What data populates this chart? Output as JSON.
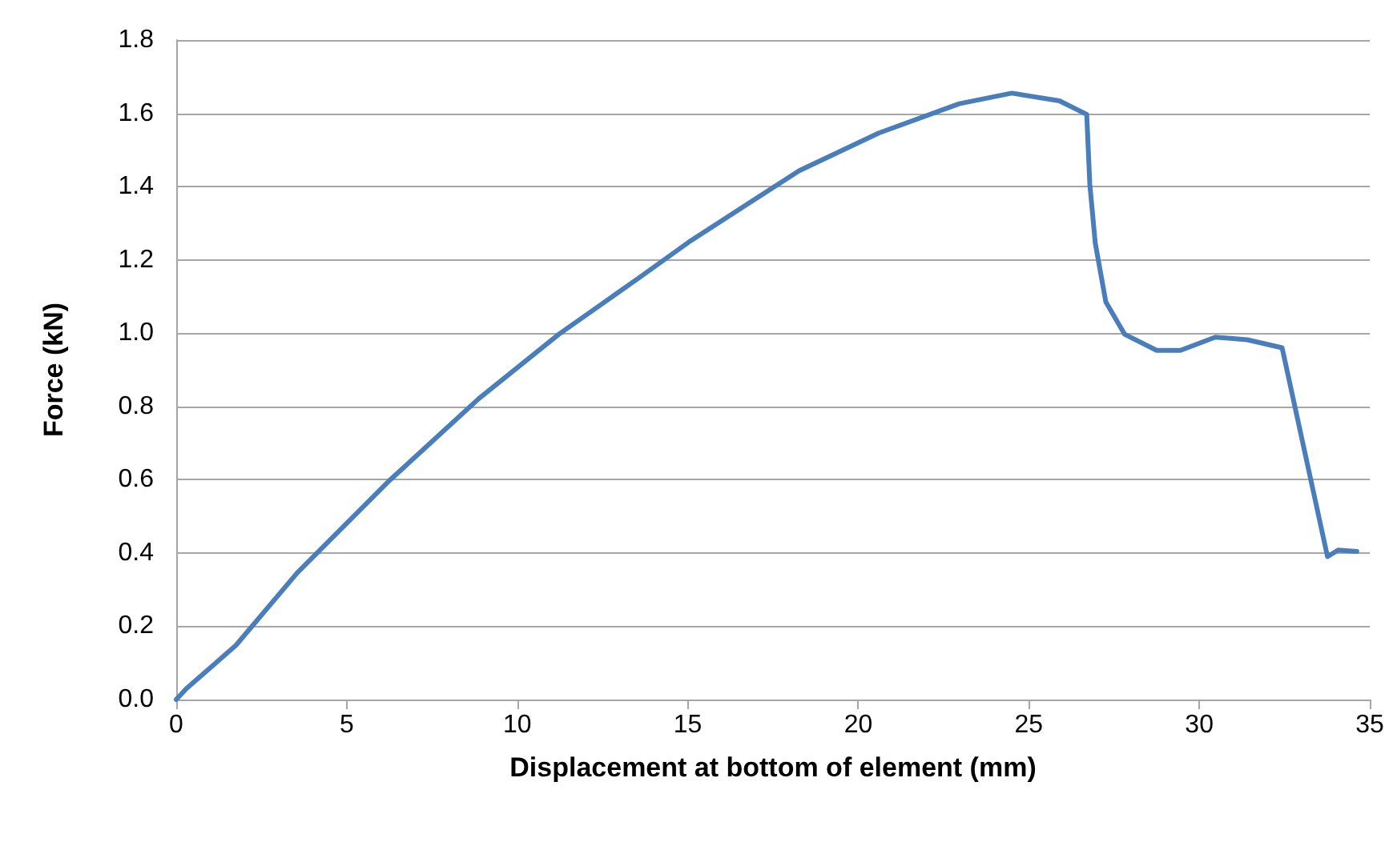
{
  "chart_data": {
    "type": "line",
    "xlabel": "Displacement at bottom of element (mm)",
    "ylabel": "Force (kN)",
    "xlim": [
      0,
      35
    ],
    "xticks": [
      0,
      5,
      10,
      15,
      20,
      25,
      30,
      35
    ],
    "ylim": [
      0,
      1.8
    ],
    "yticks": [
      {
        "value": 0,
        "label": "0.0"
      },
      {
        "value": 0.2,
        "label": "0.2"
      },
      {
        "value": 0.4,
        "label": "0.4"
      },
      {
        "value": 0.6,
        "label": "0.6"
      },
      {
        "value": 0.8,
        "label": "0.8"
      },
      {
        "value": 1.0,
        "label": "1.0"
      },
      {
        "value": 1.2,
        "label": "1.2"
      },
      {
        "value": 1.4,
        "label": "1.4"
      },
      {
        "value": 1.6,
        "label": "1.6"
      },
      {
        "value": 1.8,
        "label": "1.8"
      }
    ],
    "grid": "y",
    "marker": "none",
    "line_style": "solid",
    "series": [
      {
        "color": "#4a7ebb",
        "x": [
          0,
          0.3,
          1.75,
          3.55,
          6.21,
          8.87,
          11.22,
          13.57,
          15.1,
          18.26,
          20.6,
          22.96,
          24.5,
          25.9,
          26.7,
          26.79,
          26.95,
          27.26,
          27.81,
          28.75,
          29.45,
          30.47,
          31.41,
          32.43,
          33.76,
          34.07,
          34.62
        ],
        "values": [
          0,
          0.03,
          0.148,
          0.346,
          0.594,
          0.821,
          0.997,
          1.151,
          1.253,
          1.443,
          1.546,
          1.626,
          1.655,
          1.634,
          1.597,
          1.407,
          1.246,
          1.085,
          0.997,
          0.953,
          0.953,
          0.989,
          0.982,
          0.96,
          0.39,
          0.408,
          0.404
        ]
      }
    ]
  }
}
